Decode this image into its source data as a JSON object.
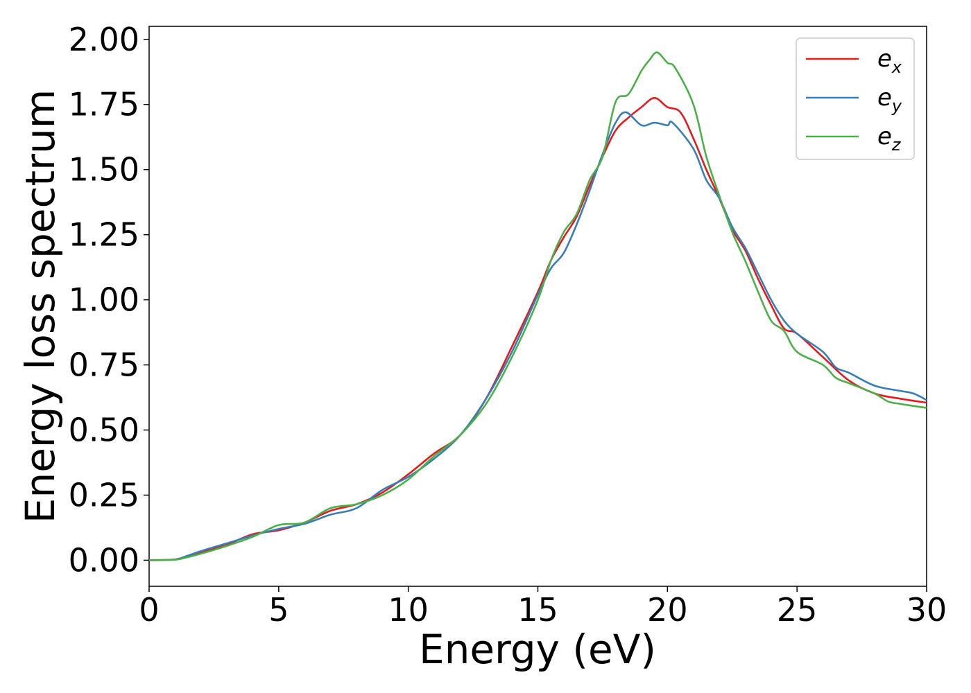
{
  "chart_data": {
    "type": "line",
    "title": "",
    "xlabel": "Energy (eV)",
    "ylabel": "Energy loss spectrum",
    "xlim": [
      0,
      30
    ],
    "ylim": [
      -0.1,
      2.05
    ],
    "xticks": [
      0,
      5,
      10,
      15,
      20,
      25,
      30
    ],
    "xtick_labels": [
      "0",
      "5",
      "10",
      "15",
      "20",
      "25",
      "30"
    ],
    "yticks": [
      0,
      0.25,
      0.5,
      0.75,
      1.0,
      1.25,
      1.5,
      1.75,
      2.0
    ],
    "ytick_labels": [
      "0.00",
      "0.25",
      "0.50",
      "0.75",
      "1.00",
      "1.25",
      "1.50",
      "1.75",
      "2.00"
    ],
    "grid": false,
    "legend_position": "top-right",
    "series": [
      {
        "name": "e_x",
        "legend_base": "e",
        "legend_sub": "x",
        "color": "#e41a1c",
        "points": [
          [
            0,
            0
          ],
          [
            1,
            0.003
          ],
          [
            1.5,
            0.015
          ],
          [
            2,
            0.03
          ],
          [
            3,
            0.06
          ],
          [
            4,
            0.1
          ],
          [
            5,
            0.115
          ],
          [
            6,
            0.145
          ],
          [
            7,
            0.19
          ],
          [
            8,
            0.215
          ],
          [
            9,
            0.26
          ],
          [
            10,
            0.33
          ],
          [
            11,
            0.41
          ],
          [
            12,
            0.48
          ],
          [
            13,
            0.62
          ],
          [
            14,
            0.82
          ],
          [
            15,
            1.03
          ],
          [
            15.5,
            1.15
          ],
          [
            16,
            1.24
          ],
          [
            16.5,
            1.32
          ],
          [
            17,
            1.44
          ],
          [
            17.5,
            1.55
          ],
          [
            18,
            1.65
          ],
          [
            18.5,
            1.7
          ],
          [
            19,
            1.74
          ],
          [
            19.5,
            1.775
          ],
          [
            20,
            1.74
          ],
          [
            20.5,
            1.72
          ],
          [
            21,
            1.62
          ],
          [
            21.5,
            1.5
          ],
          [
            22,
            1.39
          ],
          [
            22.5,
            1.27
          ],
          [
            23,
            1.19
          ],
          [
            23.5,
            1.08
          ],
          [
            24,
            0.98
          ],
          [
            24.5,
            0.89
          ],
          [
            25,
            0.87
          ],
          [
            26,
            0.78
          ],
          [
            27,
            0.69
          ],
          [
            28,
            0.64
          ],
          [
            29,
            0.62
          ],
          [
            30,
            0.605
          ]
        ]
      },
      {
        "name": "e_y",
        "legend_base": "e",
        "legend_sub": "y",
        "color": "#377eb8",
        "points": [
          [
            0,
            0
          ],
          [
            1,
            0.003
          ],
          [
            1.5,
            0.018
          ],
          [
            2,
            0.035
          ],
          [
            3,
            0.065
          ],
          [
            4,
            0.095
          ],
          [
            5,
            0.12
          ],
          [
            6,
            0.14
          ],
          [
            7,
            0.175
          ],
          [
            8,
            0.2
          ],
          [
            9,
            0.27
          ],
          [
            10,
            0.32
          ],
          [
            11,
            0.39
          ],
          [
            12,
            0.48
          ],
          [
            13,
            0.62
          ],
          [
            14,
            0.8
          ],
          [
            15,
            1.02
          ],
          [
            15.5,
            1.12
          ],
          [
            16,
            1.18
          ],
          [
            16.5,
            1.29
          ],
          [
            17,
            1.42
          ],
          [
            17.5,
            1.56
          ],
          [
            18,
            1.68
          ],
          [
            18.4,
            1.72
          ],
          [
            19,
            1.67
          ],
          [
            19.5,
            1.68
          ],
          [
            20,
            1.67
          ],
          [
            20.2,
            1.68
          ],
          [
            21,
            1.58
          ],
          [
            21.5,
            1.46
          ],
          [
            22,
            1.39
          ],
          [
            22.5,
            1.28
          ],
          [
            23,
            1.2
          ],
          [
            23.5,
            1.1
          ],
          [
            24,
            1.0
          ],
          [
            24.5,
            0.92
          ],
          [
            25,
            0.87
          ],
          [
            26,
            0.8
          ],
          [
            26.5,
            0.74
          ],
          [
            27,
            0.72
          ],
          [
            28,
            0.67
          ],
          [
            29,
            0.65
          ],
          [
            29.5,
            0.64
          ],
          [
            30,
            0.615
          ]
        ]
      },
      {
        "name": "e_z",
        "legend_base": "e",
        "legend_sub": "z",
        "color": "#4daf4a",
        "points": [
          [
            0,
            0
          ],
          [
            1,
            0.002
          ],
          [
            1.5,
            0.012
          ],
          [
            2,
            0.025
          ],
          [
            3,
            0.055
          ],
          [
            4,
            0.09
          ],
          [
            5,
            0.135
          ],
          [
            6,
            0.145
          ],
          [
            7,
            0.2
          ],
          [
            8,
            0.215
          ],
          [
            9,
            0.25
          ],
          [
            10,
            0.31
          ],
          [
            11,
            0.4
          ],
          [
            12,
            0.48
          ],
          [
            13,
            0.6
          ],
          [
            14,
            0.78
          ],
          [
            15,
            1.0
          ],
          [
            15.5,
            1.15
          ],
          [
            16,
            1.26
          ],
          [
            16.5,
            1.33
          ],
          [
            17,
            1.46
          ],
          [
            17.5,
            1.55
          ],
          [
            18,
            1.76
          ],
          [
            18.5,
            1.79
          ],
          [
            19,
            1.88
          ],
          [
            19.3,
            1.92
          ],
          [
            19.6,
            1.95
          ],
          [
            20,
            1.91
          ],
          [
            20.3,
            1.89
          ],
          [
            21,
            1.75
          ],
          [
            21.5,
            1.55
          ],
          [
            22,
            1.4
          ],
          [
            22.5,
            1.26
          ],
          [
            23,
            1.15
          ],
          [
            23.5,
            1.03
          ],
          [
            24,
            0.92
          ],
          [
            24.5,
            0.88
          ],
          [
            25,
            0.8
          ],
          [
            26,
            0.75
          ],
          [
            26.5,
            0.7
          ],
          [
            27,
            0.68
          ],
          [
            28,
            0.64
          ],
          [
            28.5,
            0.61
          ],
          [
            29,
            0.6
          ],
          [
            30,
            0.585
          ]
        ]
      }
    ]
  }
}
